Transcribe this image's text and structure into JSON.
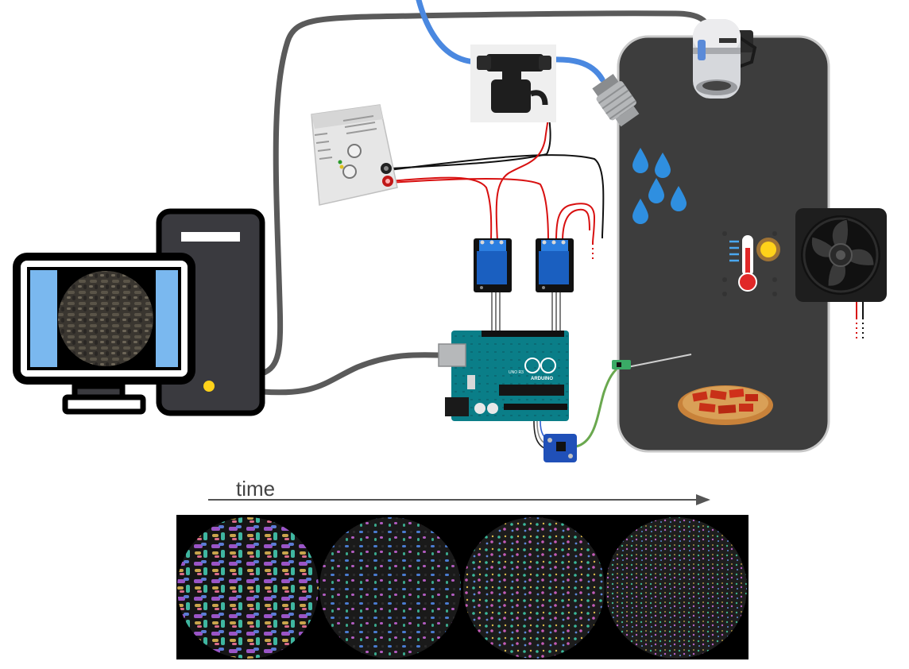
{
  "timeline": {
    "label": "time",
    "frame_count": 4
  },
  "board": {
    "brand": "ARDUINO",
    "model": "UNO R3"
  },
  "colors": {
    "chamber": "#3d3d3d",
    "tower": "#3a3a3f",
    "screen_accent": "#7ab8ef",
    "water": "#2f8fe0",
    "tube": "#4a88e0",
    "arduino": "#0a7e88",
    "relay": "#1a5fc0",
    "dish": "#c84020"
  },
  "icons": [
    "computer-icon",
    "monitor-icon",
    "power-supply-icon",
    "solenoid-valve-icon",
    "nozzle-icon",
    "camera-icon",
    "fan-icon",
    "thermometer-icon",
    "sun-icon",
    "water-drop-icon",
    "relay-icon",
    "arduino-icon",
    "sensor-icon",
    "petri-dish-icon"
  ]
}
